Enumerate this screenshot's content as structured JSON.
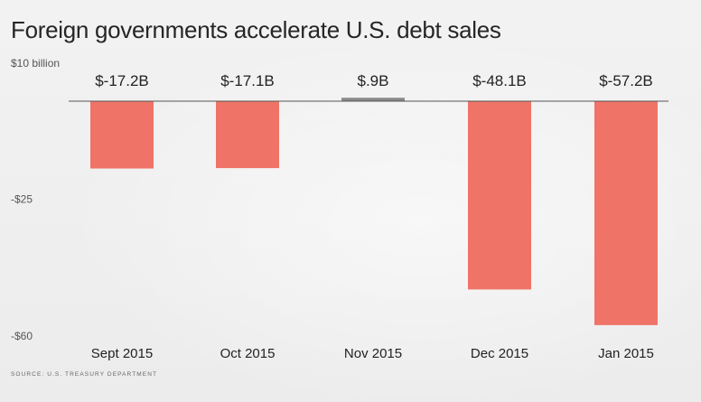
{
  "title": "Foreign governments accelerate U.S. debt sales",
  "source": "Source: U.S. Treasury Department",
  "colors": {
    "bar": "#ef7367",
    "positive_bar": "#8a8a8a",
    "baseline": "#555555"
  },
  "chart_data": {
    "type": "bar",
    "title": "Foreign governments accelerate U.S. debt sales",
    "categories": [
      "Sept 2015",
      "Oct 2015",
      "Nov 2015",
      "Dec 2015",
      "Jan 2015"
    ],
    "values": [
      -17.2,
      -17.1,
      0.9,
      -48.1,
      -57.2
    ],
    "value_labels": [
      "$-17.2B",
      "$-17.1B",
      "$.9B",
      "$-48.1B",
      "$-57.2B"
    ],
    "yticks": [
      10,
      -25,
      -60
    ],
    "ytick_labels": [
      "$10 billion",
      "-$25",
      "-$60"
    ],
    "ylim": [
      -60,
      10
    ],
    "grid": false,
    "xlabel": "",
    "ylabel": ""
  }
}
